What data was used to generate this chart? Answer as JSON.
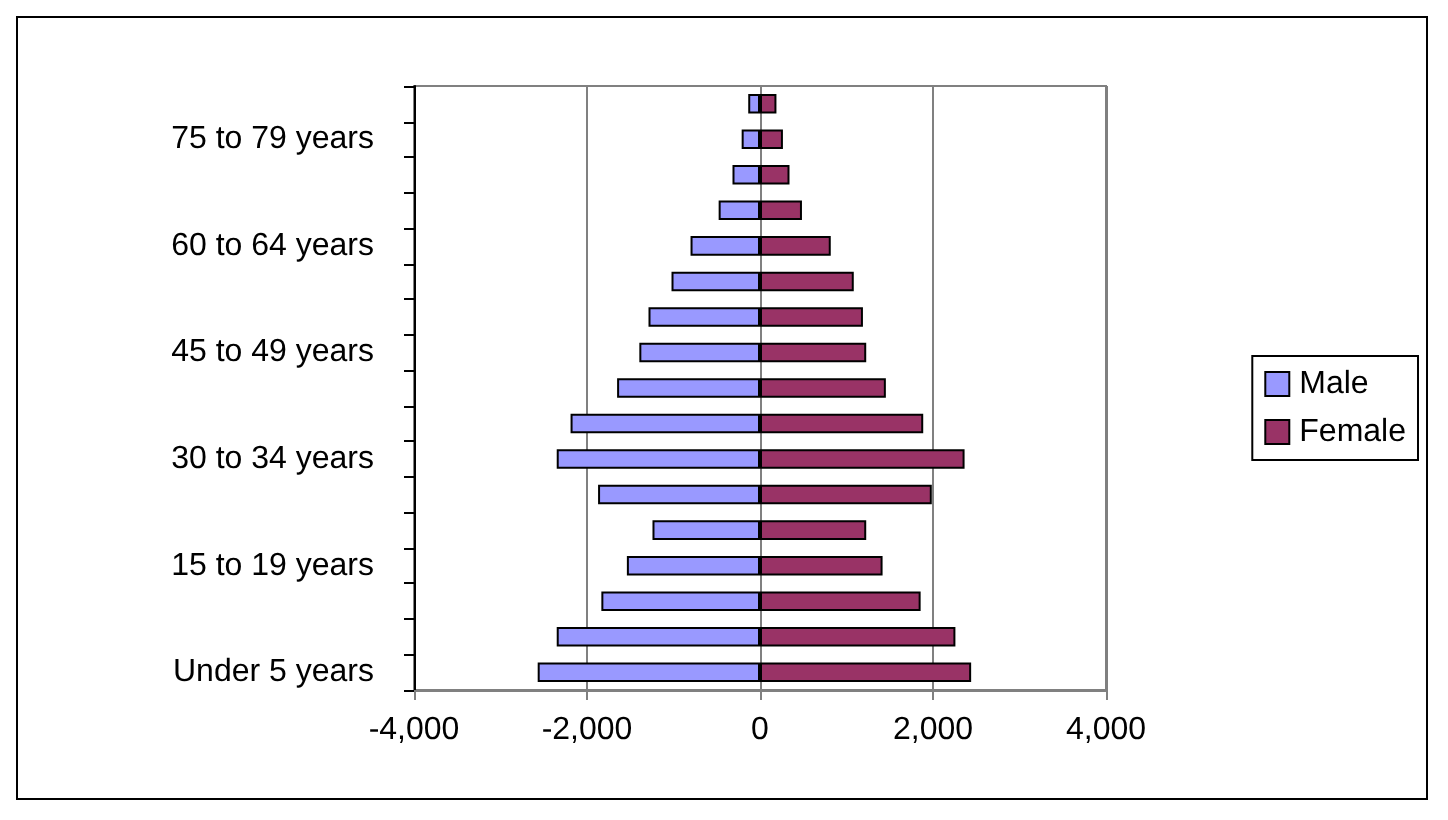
{
  "chart_data": {
    "type": "bar",
    "orientation": "horizontal",
    "stacked": true,
    "categories": [
      null,
      "75 to 79 years",
      null,
      null,
      "60 to 64 years",
      null,
      null,
      "45 to 49 years",
      null,
      null,
      "30 to 34 years",
      null,
      null,
      "15 to 19 years",
      null,
      null,
      "Under 5 years"
    ],
    "series": [
      {
        "name": "Male",
        "color": "#9999ff",
        "values": [
          -136,
          -212,
          -318,
          -478,
          -803,
          -1023,
          -1289,
          -1395,
          -1652,
          -2190,
          -2350,
          -1872,
          -1243,
          -1539,
          -1834,
          -2350,
          -2570
        ]
      },
      {
        "name": "Female",
        "color": "#993366",
        "values": [
          190,
          265,
          341,
          485,
          818,
          1084,
          1190,
          1228,
          1455,
          1887,
          2365,
          1986,
          1228,
          1417,
          1857,
          2259,
          2441
        ]
      }
    ],
    "xlim": [
      -4000,
      4000
    ],
    "xticks": [
      {
        "value": -4000,
        "label": "-4,000"
      },
      {
        "value": -2000,
        "label": "-2,000"
      },
      0,
      {
        "value": 2000,
        "label": "2,000"
      },
      {
        "value": 4000,
        "label": "4,000"
      }
    ],
    "grid": "x",
    "legend": "right"
  }
}
